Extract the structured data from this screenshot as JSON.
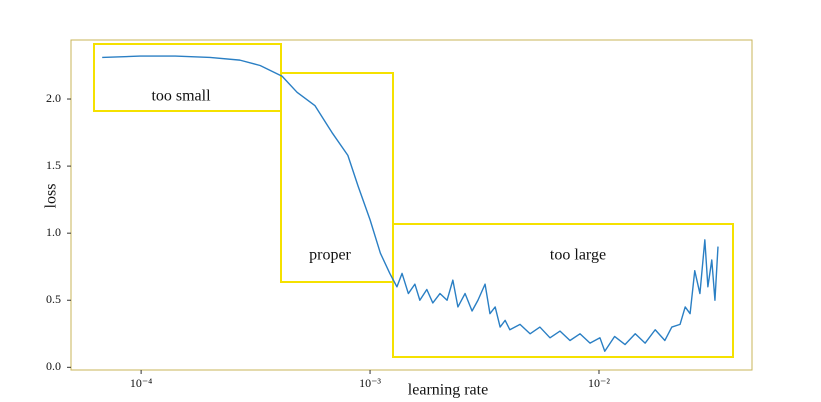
{
  "chart_data": {
    "type": "line",
    "x_label": "learning rate",
    "y_label": "loss",
    "xscale": "log",
    "grid": false,
    "xlim": [
      4.94e-05,
      0.0466
    ],
    "ylim": [
      -0.02,
      2.44
    ],
    "xticks": [
      {
        "value": 0.0001,
        "label": "10⁻⁴"
      },
      {
        "value": 0.001,
        "label": "10⁻³"
      },
      {
        "value": 0.01,
        "label": "10⁻²"
      }
    ],
    "yticks": [
      {
        "value": 0,
        "label": "0.0"
      },
      0.5,
      {
        "value": 1,
        "label": "1.0"
      },
      1.5,
      {
        "value": 2,
        "label": "2.0"
      }
    ],
    "annotations": [
      "too small",
      "proper",
      "too large"
    ],
    "annotation_color": "#f5e100",
    "x": [
      6.76e-05,
      9.9e-05,
      0.000141,
      0.0002,
      0.00027,
      0.000331,
      0.000413,
      0.00048,
      0.000575,
      0.000682,
      0.0008,
      0.000887,
      0.001,
      0.00111,
      0.00122,
      0.00131,
      0.00138,
      0.00147,
      0.00157,
      0.00165,
      0.00177,
      0.00188,
      0.00202,
      0.00217,
      0.0023,
      0.00242,
      0.0026,
      0.00279,
      0.00296,
      0.00318,
      0.00334,
      0.00352,
      0.0037,
      0.00389,
      0.00408,
      0.00452,
      0.005,
      0.00552,
      0.00611,
      0.00676,
      0.00747,
      0.00826,
      0.00914,
      0.0101,
      0.0106,
      0.0117,
      0.013,
      0.0144,
      0.0159,
      0.0176,
      0.0194,
      0.0208,
      0.0226,
      0.0238,
      0.025,
      0.0262,
      0.0276,
      0.029,
      0.0299,
      0.0311,
      0.0321,
      0.0331
    ],
    "series": [
      {
        "color": "#2a7fc4",
        "values": [
          2.31,
          2.32,
          2.32,
          2.31,
          2.29,
          2.25,
          2.17,
          2.05,
          1.95,
          1.75,
          1.58,
          1.35,
          1.1,
          0.85,
          0.7,
          0.6,
          0.7,
          0.55,
          0.62,
          0.5,
          0.58,
          0.48,
          0.55,
          0.5,
          0.65,
          0.45,
          0.55,
          0.42,
          0.5,
          0.62,
          0.4,
          0.45,
          0.3,
          0.35,
          0.28,
          0.32,
          0.25,
          0.3,
          0.22,
          0.27,
          0.2,
          0.25,
          0.18,
          0.22,
          0.12,
          0.23,
          0.17,
          0.25,
          0.18,
          0.28,
          0.2,
          0.3,
          0.32,
          0.45,
          0.4,
          0.72,
          0.55,
          0.95,
          0.6,
          0.8,
          0.5,
          0.9
        ]
      }
    ]
  }
}
